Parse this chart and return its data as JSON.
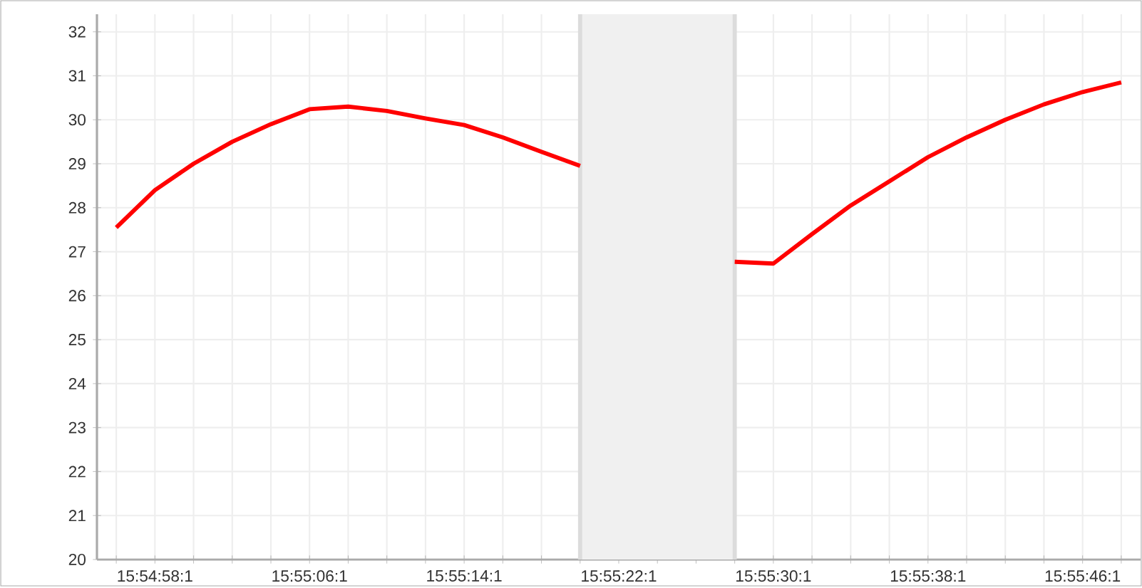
{
  "chart_data": {
    "type": "line",
    "ylim": [
      20,
      32.4
    ],
    "categories": [
      null,
      "15:54:58:1",
      null,
      null,
      null,
      "15:55:06:1",
      null,
      null,
      null,
      "15:55:14:1",
      null,
      null,
      null,
      "15:55:22:1",
      null,
      null,
      null,
      "15:55:30:1",
      null,
      null,
      null,
      "15:55:38:1",
      null,
      null,
      null,
      "15:55:46:1",
      null
    ],
    "yticks": [
      20,
      21,
      22,
      23,
      24,
      25,
      26,
      27,
      28,
      29,
      30,
      31,
      32
    ],
    "color": "#ff0000",
    "values": [
      27.55,
      28.4,
      29.0,
      29.5,
      29.9,
      30.24,
      30.3,
      30.2,
      30.03,
      29.88,
      29.6,
      29.27,
      28.95,
      null,
      null,
      null,
      26.77,
      26.73,
      27.4,
      28.05,
      28.6,
      29.15,
      29.6,
      30.0,
      30.35,
      30.63,
      30.85
    ],
    "grid": true,
    "marker": "none",
    "line_style": "solid"
  }
}
